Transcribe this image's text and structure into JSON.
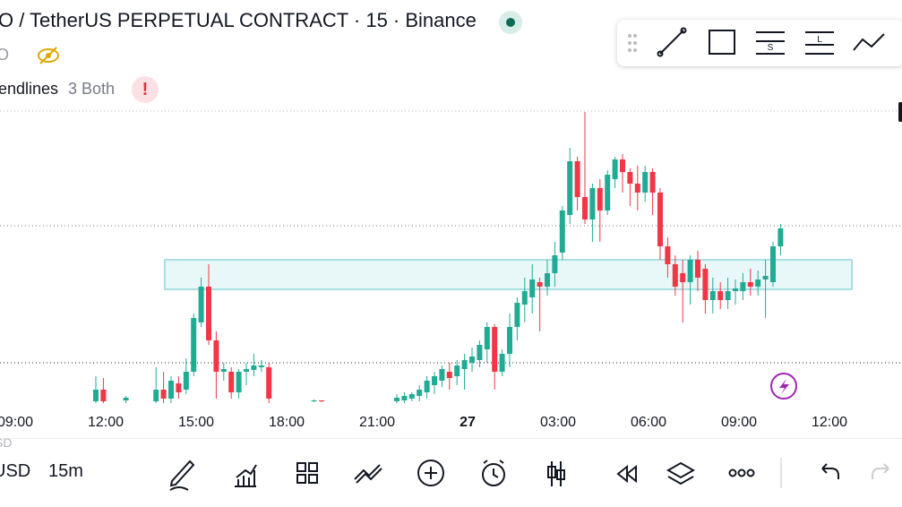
{
  "header": {
    "title": "O / TetherUS PERPETUAL CONTRACT · 15 · Binance",
    "source_short": "O",
    "indicator": "endlines",
    "indicator_params": "3 Both"
  },
  "chart_data": {
    "type": "candlestick",
    "up_color": "#22ab94",
    "down_color": "#f23645",
    "ylim": [
      0,
      330
    ],
    "time_labels": [
      "09:00",
      "12:00",
      "15:00",
      "18:00",
      "21:00",
      "27",
      "03:00",
      "06:00",
      "09:00",
      "12:00"
    ],
    "open": [
      2,
      15,
      null,
      null,
      3,
      null,
      null,
      null,
      2,
      15,
      5,
      22,
      15,
      35,
      90,
      130,
      70,
      35,
      35,
      12,
      35,
      37,
      40,
      40,
      null,
      null,
      null,
      null,
      null,
      2,
      3,
      null,
      null,
      null,
      null,
      null,
      null,
      null,
      null,
      null,
      2,
      3,
      5,
      8,
      12,
      20,
      25,
      35,
      30,
      38,
      45,
      48,
      60,
      85,
      35,
      55,
      85,
      110,
      118,
      135,
      130,
      145,
      168,
      210,
      270,
      230,
      205,
      240,
      215,
      250,
      272,
      258,
      245,
      235,
      258,
      235,
      175,
      155,
      145,
      135,
      160,
      150,
      115,
      125,
      115,
      125,
      125,
      135,
      130,
      138,
      135,
      175
    ],
    "high": [
      30,
      28,
      null,
      null,
      8,
      null,
      null,
      null,
      40,
      35,
      30,
      30,
      50,
      100,
      140,
      155,
      80,
      45,
      40,
      38,
      45,
      55,
      48,
      45,
      null,
      null,
      null,
      null,
      null,
      4,
      3,
      null,
      null,
      null,
      null,
      null,
      null,
      null,
      null,
      null,
      10,
      12,
      12,
      20,
      30,
      35,
      42,
      45,
      48,
      55,
      62,
      70,
      90,
      88,
      60,
      100,
      118,
      140,
      155,
      140,
      160,
      180,
      220,
      285,
      275,
      325,
      245,
      250,
      260,
      275,
      278,
      262,
      265,
      265,
      262,
      240,
      185,
      165,
      160,
      165,
      170,
      155,
      140,
      135,
      140,
      138,
      145,
      150,
      148,
      160,
      180,
      200
    ],
    "low": [
      0,
      0,
      null,
      null,
      0,
      null,
      null,
      null,
      0,
      0,
      0,
      5,
      10,
      30,
      85,
      65,
      5,
      25,
      5,
      5,
      20,
      30,
      35,
      0,
      null,
      null,
      null,
      null,
      null,
      1,
      1,
      null,
      null,
      null,
      null,
      null,
      null,
      null,
      null,
      null,
      0,
      0,
      2,
      2,
      5,
      10,
      18,
      15,
      20,
      15,
      35,
      40,
      45,
      15,
      30,
      40,
      70,
      90,
      100,
      80,
      120,
      130,
      160,
      200,
      215,
      200,
      180,
      180,
      210,
      240,
      235,
      220,
      215,
      225,
      210,
      160,
      140,
      120,
      90,
      110,
      125,
      100,
      100,
      105,
      105,
      110,
      115,
      120,
      120,
      95,
      130,
      165
    ],
    "close": [
      15,
      2,
      null,
      null,
      6,
      null,
      null,
      null,
      15,
      5,
      25,
      12,
      35,
      95,
      130,
      70,
      35,
      38,
      12,
      35,
      38,
      42,
      42,
      5,
      null,
      null,
      null,
      null,
      null,
      3,
      2,
      null,
      null,
      null,
      null,
      null,
      null,
      null,
      null,
      null,
      6,
      8,
      10,
      15,
      25,
      30,
      38,
      28,
      42,
      48,
      52,
      65,
      85,
      35,
      55,
      85,
      112,
      125,
      138,
      130,
      145,
      165,
      215,
      270,
      230,
      205,
      240,
      215,
      255,
      272,
      258,
      245,
      235,
      258,
      235,
      175,
      155,
      130,
      135,
      160,
      140,
      115,
      125,
      115,
      125,
      128,
      135,
      130,
      138,
      142,
      175,
      195
    ]
  },
  "footer": {
    "currency_short": "SD",
    "currency": "USD",
    "interval": "15m"
  }
}
